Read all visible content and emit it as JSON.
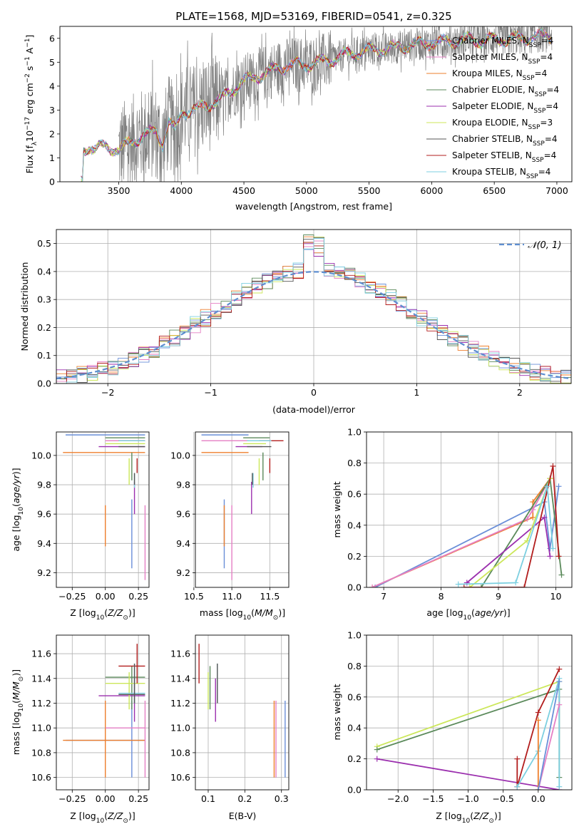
{
  "figure_title": "PLATE=1568, MJD=53169, FIBERID=0541, z=0.325",
  "colors": {
    "chabrier_miles": "#6a8fd8",
    "salpeter_miles": "#e57fc4",
    "kroupa_miles": "#ee7f2d",
    "chabrier_elodie": "#5b8a5b",
    "salpeter_elodie": "#9b2fae",
    "kroupa_elodie": "#cce75a",
    "chabrier_stelib": "#555555",
    "salpeter_stelib": "#b21d1d",
    "kroupa_stelib": "#7ccfe0",
    "data": "#808080",
    "gaussian": "#5e8ed0",
    "grid": "#b0b0b0"
  },
  "chart_data": [
    {
      "id": "spectrum",
      "type": "line",
      "title": "PLATE=1568, MJD=53169, FIBERID=0541, z=0.325",
      "xlabel": "wavelength [Angstrom, rest frame]",
      "ylabel": "Flux [fλ10⁻¹⁷ erg cm⁻² s⁻¹ A⁻¹]",
      "xlim": [
        3030,
        7120
      ],
      "ylim": [
        0,
        6.5
      ],
      "xticks": [
        3500,
        4000,
        4500,
        5000,
        5500,
        6000,
        6500,
        7000
      ],
      "yticks": [
        0,
        1,
        2,
        3,
        4,
        5,
        6
      ],
      "grid": false,
      "legend_position": "top-right",
      "legend": [
        {
          "key": "chabrier_miles",
          "label": "Chabrier MILES, N",
          "sub": "SSP",
          "tail": "=4"
        },
        {
          "key": "salpeter_miles",
          "label": "Salpeter MILES, N",
          "sub": "SSP",
          "tail": "=4"
        },
        {
          "key": "kroupa_miles",
          "label": "Kroupa MILES, N",
          "sub": "SSP",
          "tail": "=4"
        },
        {
          "key": "chabrier_elodie",
          "label": "Chabrier ELODIE, N",
          "sub": "SSP",
          "tail": "=4"
        },
        {
          "key": "salpeter_elodie",
          "label": "Salpeter ELODIE, N",
          "sub": "SSP",
          "tail": "=4"
        },
        {
          "key": "kroupa_elodie",
          "label": "Kroupa ELODIE, N",
          "sub": "SSP",
          "tail": "=3"
        },
        {
          "key": "chabrier_stelib",
          "label": "Chabrier STELIB, N",
          "sub": "SSP",
          "tail": "=4"
        },
        {
          "key": "salpeter_stelib",
          "label": "Salpeter STELIB, N",
          "sub": "SSP",
          "tail": "=4"
        },
        {
          "key": "kroupa_stelib",
          "label": "Kroupa STELIB, N",
          "sub": "SSP",
          "tail": "=4"
        }
      ],
      "continuum": [
        [
          3200,
          0.0
        ],
        [
          3210,
          0.0
        ],
        [
          3220,
          1.3
        ],
        [
          3260,
          1.5
        ],
        [
          3300,
          1.4
        ],
        [
          3400,
          1.45
        ],
        [
          3500,
          1.35
        ],
        [
          3600,
          1.65
        ],
        [
          3700,
          1.95
        ],
        [
          3800,
          2.1
        ],
        [
          3850,
          1.6
        ],
        [
          3900,
          2.5
        ],
        [
          3950,
          2.1
        ],
        [
          4000,
          2.9
        ],
        [
          4100,
          3.0
        ],
        [
          4200,
          3.2
        ],
        [
          4300,
          3.4
        ],
        [
          4400,
          3.8
        ],
        [
          4500,
          4.2
        ],
        [
          4600,
          4.4
        ],
        [
          4700,
          4.6
        ],
        [
          4800,
          4.8
        ],
        [
          4900,
          4.9
        ],
        [
          5000,
          4.9
        ],
        [
          5100,
          5.0
        ],
        [
          5200,
          5.1
        ],
        [
          5300,
          5.3
        ],
        [
          5400,
          5.4
        ],
        [
          5500,
          5.5
        ],
        [
          5600,
          5.55
        ],
        [
          5700,
          5.6
        ],
        [
          5800,
          5.7
        ],
        [
          5900,
          5.75
        ],
        [
          6000,
          5.8
        ],
        [
          6100,
          5.85
        ],
        [
          6200,
          5.9
        ],
        [
          6300,
          5.95
        ],
        [
          6400,
          5.9
        ],
        [
          6500,
          5.95
        ],
        [
          6600,
          5.95
        ],
        [
          6700,
          6.0
        ],
        [
          6800,
          6.05
        ],
        [
          6900,
          6.1
        ],
        [
          6960,
          6.1
        ]
      ],
      "data_range": [
        3500,
        6960
      ]
    },
    {
      "id": "residuals",
      "type": "histogram",
      "xlabel": "(data-model)/error",
      "ylabel": "Normed distribution",
      "xlim": [
        -2.5,
        2.5
      ],
      "ylim": [
        0,
        0.55
      ],
      "xticks": [
        -2,
        -1,
        0,
        1,
        2
      ],
      "yticks": [
        0.0,
        0.1,
        0.2,
        0.3,
        0.4,
        0.5
      ],
      "grid": true,
      "legend_position": "top-right",
      "legend": [
        {
          "key": "gaussian",
          "label": "𝒩(0, 1)"
        }
      ],
      "bin_width": 0.1,
      "series": [
        {
          "key": "chabrier_miles",
          "values_at": {
            "0": 0.5,
            "0.7": 0.3
          }
        },
        {
          "key": "salpeter_elodie",
          "values_at": {
            "0": 0.52,
            "0.3": 0.47
          }
        }
      ]
    },
    {
      "id": "age_vs_Z",
      "type": "scatter",
      "xlabel": "Z [log10(Z/Z⊙)]",
      "ylabel": "age [log10(age/yr)]",
      "xlim": [
        -0.37,
        0.33
      ],
      "ylim": [
        9.1,
        10.16
      ],
      "xticks": [
        -0.25,
        0.0,
        0.25
      ],
      "yticks": [
        9.2,
        9.4,
        9.6,
        9.8,
        10.0
      ],
      "grid": true
    },
    {
      "id": "age_vs_mass",
      "type": "scatter",
      "xlabel": "mass [log10(M/M⊙)]",
      "xlim": [
        10.52,
        11.75
      ],
      "ylim": [
        9.1,
        10.16
      ],
      "xticks": [
        10.5,
        11.0,
        11.5
      ],
      "yticks": [
        9.2,
        9.4,
        9.6,
        9.8,
        10.0
      ],
      "grid": true
    },
    {
      "id": "mass_weight_vs_age",
      "type": "line",
      "xlabel": "age [log10(age/yr)]",
      "ylabel": "mass weight",
      "xlim": [
        6.7,
        10.28
      ],
      "ylim": [
        0.0,
        1.0
      ],
      "xticks": [
        7,
        8,
        9,
        10
      ],
      "yticks": [
        0.0,
        0.2,
        0.4,
        0.6,
        0.8,
        1.0
      ],
      "grid": true
    },
    {
      "id": "mass_vs_Z",
      "type": "scatter",
      "xlabel": "Z [log10(Z/Z⊙)]",
      "ylabel": "mass [log10(M/M⊙)]",
      "xlim": [
        -0.37,
        0.33
      ],
      "ylim": [
        10.5,
        11.75
      ],
      "xticks": [
        -0.25,
        0.0,
        0.25
      ],
      "yticks": [
        10.6,
        10.8,
        11.0,
        11.2,
        11.4,
        11.6
      ],
      "grid": true
    },
    {
      "id": "mass_vs_ebv",
      "type": "scatter",
      "xlabel": "E(B-V)",
      "xlim": [
        0.065,
        0.32
      ],
      "ylim": [
        10.5,
        11.75
      ],
      "xticks": [
        0.1,
        0.2,
        0.3
      ],
      "yticks": [
        10.6,
        10.8,
        11.0,
        11.2,
        11.4,
        11.6
      ],
      "grid": true
    },
    {
      "id": "mass_weight_vs_Z",
      "type": "line",
      "xlabel": "Z [log10(Z/Z⊙)]",
      "ylabel": "mass weight",
      "xlim": [
        -2.45,
        0.48
      ],
      "ylim": [
        0.0,
        1.0
      ],
      "xticks": [
        -2.0,
        -1.5,
        -1.0,
        -0.5,
        0.0
      ],
      "yticks": [
        0.0,
        0.2,
        0.4,
        0.6,
        0.8,
        1.0
      ],
      "grid": true
    }
  ],
  "fits": {
    "age_Z_mass_ebv": [
      {
        "key": "chabrier_miles",
        "Z": [
          -0.3,
          0.3,
          0.2
        ],
        "age": [
          9.7,
          9.23,
          10.14
        ],
        "mass": [
          10.6,
          11.22,
          10.9
        ],
        "ebv": 0.31
      },
      {
        "key": "kroupa_miles",
        "Z": [
          -0.32,
          0.3,
          0.0
        ],
        "age": [
          9.66,
          9.38,
          10.02
        ],
        "mass": [
          10.6,
          11.22,
          10.9
        ],
        "ebv": 0.28
      },
      {
        "key": "salpeter_miles",
        "Z": [
          0.0,
          0.3,
          0.3
        ],
        "age": [
          9.66,
          9.15,
          10.1
        ],
        "mass": [
          10.6,
          11.22,
          11.0
        ],
        "ebv": 0.285
      },
      {
        "key": "chabrier_elodie",
        "Z": [
          0.0,
          0.3,
          0.2
        ],
        "age": [
          10.02,
          9.83,
          10.12
        ],
        "mass": [
          11.15,
          11.5,
          11.41
        ],
        "ebv": 0.105
      },
      {
        "key": "salpeter_elodie",
        "Z": [
          -0.05,
          0.3,
          0.22
        ],
        "age": [
          9.82,
          9.6,
          10.06
        ],
        "mass": [
          11.05,
          11.4,
          11.26
        ],
        "ebv": 0.12
      },
      {
        "key": "kroupa_elodie",
        "Z": [
          0.0,
          0.3,
          0.18
        ],
        "age": [
          9.98,
          9.8,
          10.08
        ],
        "mass": [
          11.15,
          11.45,
          11.36
        ],
        "ebv": 0.1
      },
      {
        "key": "salpeter_stelib",
        "Z": [
          0.1,
          0.3,
          0.24
        ],
        "age": [
          9.98,
          9.88,
          10.1
        ],
        "mass": [
          11.36,
          11.68,
          11.5
        ],
        "ebv": 0.075
      },
      {
        "key": "kroupa_stelib",
        "Z": [
          0.1,
          0.3,
          0.22
        ],
        "age": [
          9.88,
          9.78,
          10.1
        ],
        "mass": [
          11.2,
          11.52,
          11.28
        ],
        "ebv": 0.125
      },
      {
        "key": "chabrier_stelib",
        "Z": [
          0.1,
          0.3,
          0.22
        ],
        "age": [
          9.88,
          9.8,
          10.06
        ],
        "mass": [
          11.2,
          11.52,
          11.27
        ],
        "ebv": 0.125
      }
    ],
    "mass_weight_age": [
      {
        "key": "chabrier_miles",
        "points": [
          [
            6.85,
            0.0
          ],
          [
            9.8,
            0.55
          ],
          [
            9.9,
            0.25
          ],
          [
            10.05,
            0.65
          ]
        ]
      },
      {
        "key": "kroupa_miles",
        "points": [
          [
            6.8,
            0.0
          ],
          [
            9.6,
            0.45
          ],
          [
            9.6,
            0.55
          ],
          [
            9.9,
            0.7
          ]
        ]
      },
      {
        "key": "salpeter_miles",
        "points": [
          [
            6.8,
            0.0
          ],
          [
            9.5,
            0.44
          ],
          [
            9.6,
            0.5
          ],
          [
            9.9,
            0.7
          ]
        ]
      },
      {
        "key": "chabrier_elodie",
        "points": [
          [
            8.7,
            0.0
          ],
          [
            9.9,
            0.7
          ],
          [
            10.1,
            0.08
          ]
        ]
      },
      {
        "key": "salpeter_elodie",
        "points": [
          [
            8.45,
            0.03
          ],
          [
            9.8,
            0.45
          ],
          [
            9.9,
            0.2
          ]
        ]
      },
      {
        "key": "kroupa_elodie",
        "points": [
          [
            8.5,
            0.0
          ],
          [
            9.5,
            0.3
          ],
          [
            9.9,
            0.7
          ]
        ]
      },
      {
        "key": "salpeter_stelib",
        "points": [
          [
            8.4,
            0.0
          ],
          [
            9.45,
            0.0
          ],
          [
            9.95,
            0.78
          ],
          [
            10.05,
            0.2
          ]
        ]
      },
      {
        "key": "kroupa_stelib",
        "points": [
          [
            8.3,
            0.02
          ],
          [
            9.3,
            0.03
          ],
          [
            9.85,
            0.65
          ],
          [
            9.95,
            0.25
          ]
        ]
      }
    ],
    "mass_weight_Z": [
      {
        "key": "kroupa_elodie",
        "points": [
          [
            -2.3,
            0.28
          ],
          [
            0.3,
            0.7
          ]
        ]
      },
      {
        "key": "chabrier_elodie",
        "points": [
          [
            -2.3,
            0.26
          ],
          [
            0.3,
            0.65
          ],
          [
            0.3,
            0.08
          ]
        ]
      },
      {
        "key": "salpeter_elodie",
        "points": [
          [
            -2.3,
            0.2
          ],
          [
            0.3,
            0.0
          ]
        ]
      },
      {
        "key": "salpeter_stelib",
        "points": [
          [
            -0.3,
            0.2
          ],
          [
            -0.3,
            0.02
          ],
          [
            0.0,
            0.5
          ],
          [
            0.3,
            0.78
          ]
        ]
      },
      {
        "key": "kroupa_stelib",
        "points": [
          [
            -0.3,
            0.02
          ],
          [
            0.0,
            0.25
          ],
          [
            0.3,
            0.72
          ],
          [
            0.3,
            0.02
          ]
        ]
      },
      {
        "key": "salpeter_miles",
        "points": [
          [
            0.0,
            0.0
          ],
          [
            0.3,
            0.55
          ]
        ]
      },
      {
        "key": "kroupa_miles",
        "points": [
          [
            0.0,
            0.0
          ],
          [
            0.0,
            0.45
          ]
        ]
      },
      {
        "key": "chabrier_miles",
        "points": [
          [
            0.0,
            0.0
          ],
          [
            0.3,
            0.7
          ]
        ]
      }
    ]
  }
}
